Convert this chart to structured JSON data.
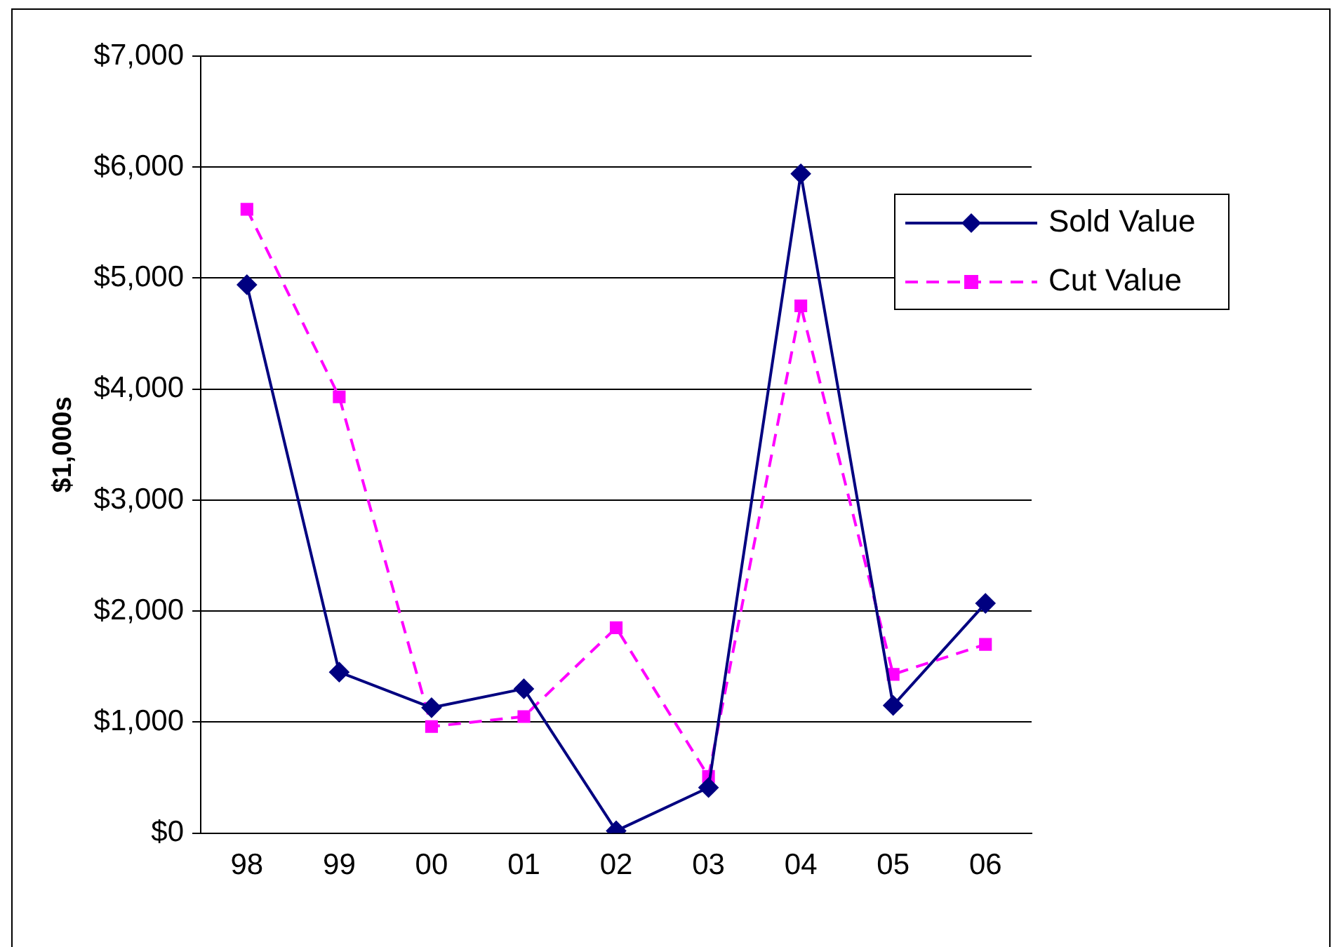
{
  "chart_data": {
    "type": "line",
    "ylabel": "$1,000s",
    "categories": [
      "98",
      "99",
      "00",
      "01",
      "02",
      "03",
      "04",
      "05",
      "06"
    ],
    "series": [
      {
        "name": "Sold Value",
        "color": "#000080",
        "marker": "diamond",
        "line_style": "solid",
        "values": [
          4940,
          1450,
          1130,
          1300,
          20,
          410,
          5940,
          1150,
          2070
        ]
      },
      {
        "name": "Cut Value",
        "color": "#ff00ff",
        "marker": "square",
        "line_style": "dashed",
        "values": [
          5620,
          3930,
          960,
          1050,
          1850,
          510,
          4750,
          1430,
          1700
        ]
      }
    ],
    "ylim": [
      0,
      7000
    ],
    "yticks": [
      {
        "value": 0,
        "label": "$0"
      },
      {
        "value": 1000,
        "label": "$1,000"
      },
      {
        "value": 2000,
        "label": "$2,000"
      },
      {
        "value": 3000,
        "label": "$3,000"
      },
      {
        "value": 4000,
        "label": "$4,000"
      },
      {
        "value": 5000,
        "label": "$5,000"
      },
      {
        "value": 6000,
        "label": "$6,000"
      },
      {
        "value": 7000,
        "label": "$7,000"
      }
    ],
    "grid": "y",
    "legend": "top right"
  }
}
